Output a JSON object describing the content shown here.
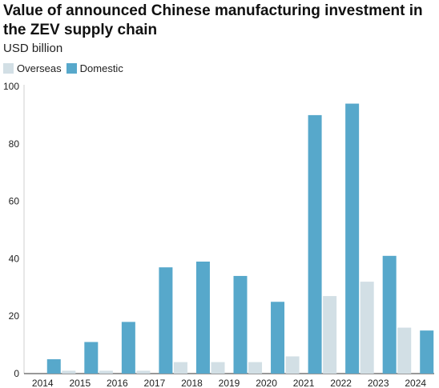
{
  "chart_data": {
    "type": "bar",
    "title": "Value of announced Chinese manufacturing investment in the ZEV supply chain",
    "subtitle": "USD billion",
    "categories": [
      "2014",
      "2015",
      "2016",
      "2017",
      "2018",
      "2019",
      "2020",
      "2021",
      "2022",
      "2023",
      "2024"
    ],
    "series": [
      {
        "name": "Overseas",
        "color": "#d2dfe5",
        "values": [
          0,
          1,
          1,
          1,
          4,
          4,
          4,
          6,
          27,
          32,
          16
        ]
      },
      {
        "name": "Domestic",
        "color": "#57a8cb",
        "values": [
          5,
          11,
          18,
          37,
          39,
          34,
          25,
          90,
          94,
          41,
          15
        ]
      }
    ],
    "ylim": [
      0,
      100
    ],
    "yticks": [
      0,
      20,
      40,
      60,
      80,
      100
    ],
    "grid": false,
    "legend_position": "top-left"
  }
}
